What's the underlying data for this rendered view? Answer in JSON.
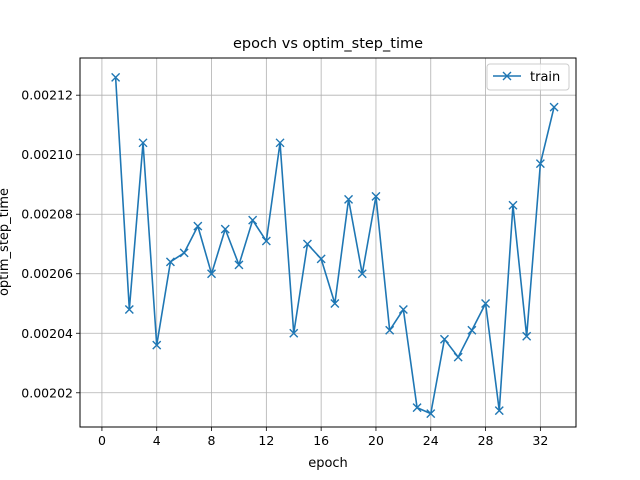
{
  "chart_data": {
    "type": "line",
    "title": "epoch vs optim_step_time",
    "xlabel": "epoch",
    "ylabel": "optim_step_time",
    "xlim": [
      -1.6,
      34.6
    ],
    "ylim": [
      0.0020085,
      0.0021325
    ],
    "xticks": [
      0,
      4,
      8,
      12,
      16,
      20,
      24,
      28,
      32
    ],
    "yticks": [
      0.00202,
      0.00204,
      0.00206,
      0.00208,
      0.0021,
      0.00212
    ],
    "ytick_labels": [
      "0.00202",
      "0.00204",
      "0.00206",
      "0.00208",
      "0.00210",
      "0.00212"
    ],
    "grid": true,
    "legend_position": "top-right",
    "series": [
      {
        "name": "train",
        "color": "#1f77b4",
        "marker": "x",
        "x": [
          1,
          2,
          3,
          4,
          5,
          6,
          7,
          8,
          9,
          10,
          11,
          12,
          13,
          14,
          15,
          16,
          17,
          18,
          19,
          20,
          21,
          22,
          23,
          24,
          25,
          26,
          27,
          28,
          29,
          30,
          31,
          32,
          33
        ],
        "y": [
          0.002126,
          0.002048,
          0.002104,
          0.002036,
          0.002064,
          0.002067,
          0.002076,
          0.00206,
          0.002075,
          0.002063,
          0.002078,
          0.002071,
          0.002104,
          0.00204,
          0.00207,
          0.002065,
          0.00205,
          0.002085,
          0.00206,
          0.002086,
          0.002041,
          0.002048,
          0.002015,
          0.002013,
          0.002038,
          0.002032,
          0.002041,
          0.00205,
          0.002014,
          0.002083,
          0.002039,
          0.002097,
          0.002116
        ]
      }
    ]
  }
}
